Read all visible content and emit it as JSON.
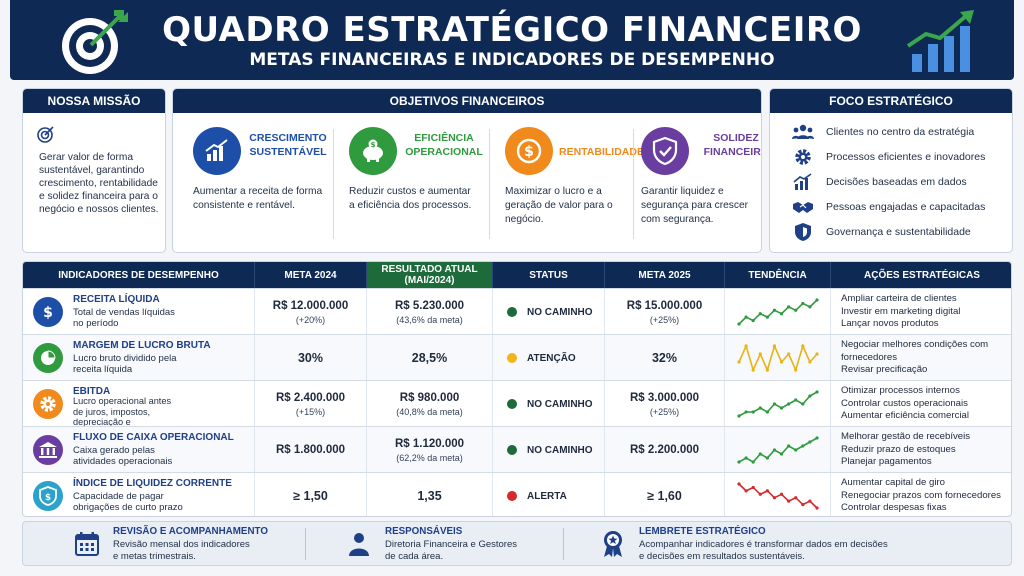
{
  "header": {
    "title": "QUADRO ESTRATÉGICO FINANCEIRO",
    "subtitle": "METAS FINANCEIRAS E INDICADORES DE DESEMPENHO"
  },
  "mission": {
    "title": "NOSSA MISSÃO",
    "text": "Gerar valor de forma sustentável, garantindo crescimento, rentabilidade e solidez financeira para o negócio e nossos clientes."
  },
  "objectives": {
    "title": "OBJETIVOS FINANCEIROS",
    "items": [
      {
        "name": "CRESCIMENTO SUSTENTÁVEL",
        "desc": "Aumentar a receita de forma consistente e rentável.",
        "color": "#1e4fa8",
        "icon": "growth-chart-icon"
      },
      {
        "name": "EFICIÊNCIA OPERACIONAL",
        "desc": "Reduzir custos e aumentar a eficiência dos processos.",
        "color": "#2f9a3e",
        "icon": "piggy-bank-icon"
      },
      {
        "name": "RENTABILIDADE",
        "desc": "Maximizar o lucro e a geração de valor para o negócio.",
        "color": "#f08a1c",
        "icon": "dollar-coin-icon"
      },
      {
        "name": "SOLIDEZ FINANCEIRA",
        "desc": "Garantir liquidez e segurança para crescer com segurança.",
        "color": "#6a3ea0",
        "icon": "shield-check-icon"
      }
    ]
  },
  "focus": {
    "title": "FOCO ESTRATÉGICO",
    "items": [
      {
        "label": "Clientes no centro da estratégia",
        "icon": "people-icon"
      },
      {
        "label": "Processos eficientes e inovadores",
        "icon": "gear-icon"
      },
      {
        "label": "Decisões baseadas em dados",
        "icon": "bar-chart-icon"
      },
      {
        "label": "Pessoas engajadas e capacitadas",
        "icon": "handshake-icon"
      },
      {
        "label": "Governança e sustentabilidade",
        "icon": "shield-icon"
      }
    ]
  },
  "table": {
    "headers": [
      "INDICADORES DE DESEMPENHO",
      "META 2024",
      "RESULTADO ATUAL (MAI/2024)",
      "STATUS",
      "META 2025",
      "TENDÊNCIA",
      "AÇÕES ESTRATÉGICAS"
    ],
    "rows": [
      {
        "name": "RECEITA LÍQUIDA",
        "desc": "Total de vendas líquidas no período",
        "icon": "dollar-icon",
        "icon_color": "#1e4fa8",
        "meta2024": "R$ 12.000.000",
        "meta2024_sub": "(+20%)",
        "result": "R$ 5.230.000",
        "result_sub": "(43,6% da meta)",
        "status": "NO CAMINHO",
        "status_color": "#1d6b3a",
        "meta2025": "R$ 15.000.000",
        "meta2025_sub": "(+25%)",
        "trend": [
          2,
          4,
          3,
          5,
          4,
          6,
          5,
          7,
          6,
          8,
          7,
          9
        ],
        "trend_color": "#2f9a3e",
        "actions": [
          "Ampliar carteira de clientes",
          "Investir em marketing digital",
          "Lançar novos produtos"
        ]
      },
      {
        "name": "MARGEM DE LUCRO BRUTA",
        "desc": "Lucro bruto dividido pela receita líquida",
        "icon": "pie-chart-icon",
        "icon_color": "#2f9a3e",
        "meta2024": "30%",
        "meta2024_sub": "",
        "result": "28,5%",
        "result_sub": "",
        "status": "ATENÇÃO",
        "status_color": "#f2b418",
        "meta2025": "32%",
        "meta2025_sub": "",
        "trend": [
          5,
          7,
          4,
          6,
          4,
          7,
          5,
          6,
          4,
          7,
          5,
          6
        ],
        "trend_color": "#e8b418",
        "actions": [
          "Negociar melhores condições com fornecedores",
          "Revisar precificação"
        ]
      },
      {
        "name": "EBITDA",
        "desc": "Lucro operacional antes de juros, impostos, depreciação e amortização",
        "icon": "gear-icon",
        "icon_color": "#f08a1c",
        "meta2024": "R$ 2.400.000",
        "meta2024_sub": "(+15%)",
        "result": "R$ 980.000",
        "result_sub": "(40,8% da meta)",
        "status": "NO CAMINHO",
        "status_color": "#1d6b3a",
        "meta2025": "R$ 3.000.000",
        "meta2025_sub": "(+25%)",
        "trend": [
          2,
          3,
          3,
          4,
          3,
          5,
          4,
          5,
          6,
          5,
          7,
          8
        ],
        "trend_color": "#2f9a3e",
        "actions": [
          "Otimizar processos internos",
          "Controlar custos operacionais",
          "Aumentar eficiência comercial"
        ]
      },
      {
        "name": "FLUXO DE CAIXA OPERACIONAL",
        "desc": "Caixa gerado pelas atividades operacionais",
        "icon": "bank-icon",
        "icon_color": "#6a3ea0",
        "meta2024": "R$ 1.800.000",
        "meta2024_sub": "",
        "result": "R$ 1.120.000",
        "result_sub": "(62,2% da meta)",
        "status": "NO CAMINHO",
        "status_color": "#1d6b3a",
        "meta2025": "R$ 2.200.000",
        "meta2025_sub": "",
        "trend": [
          2,
          3,
          2,
          4,
          3,
          5,
          4,
          6,
          5,
          6,
          7,
          8
        ],
        "trend_color": "#2f9a3e",
        "actions": [
          "Melhorar gestão de recebíveis",
          "Reduzir prazo de estoques",
          "Planejar pagamentos"
        ]
      },
      {
        "name": "ÍNDICE DE LIQUIDEZ CORRENTE",
        "desc": "Capacidade de pagar obrigações de curto prazo",
        "icon": "shield-dollar-icon",
        "icon_color": "#2aa2c9",
        "meta2024": "≥ 1,50",
        "meta2024_sub": "",
        "result": "1,35",
        "result_sub": "",
        "status": "ALERTA",
        "status_color": "#d42a2a",
        "meta2025": "≥ 1,60",
        "meta2025_sub": "",
        "trend": [
          8,
          6,
          7,
          5,
          6,
          4,
          5,
          3,
          4,
          2,
          3,
          1
        ],
        "trend_color": "#d42a2a",
        "actions": [
          "Aumentar capital de giro",
          "Renegociar prazos com fornecedores",
          "Controlar despesas fixas"
        ]
      }
    ]
  },
  "footer": [
    {
      "title": "REVISÃO E ACOMPANHAMENTO",
      "desc": [
        "Revisão mensal dos indicadores",
        "e metas trimestrais."
      ],
      "icon": "calendar-icon"
    },
    {
      "title": "RESPONSÁVEIS",
      "desc": [
        "Diretoria Financeira e Gestores",
        "de cada área."
      ],
      "icon": "person-icon"
    },
    {
      "title": "LEMBRETE ESTRATÉGICO",
      "desc": [
        "Acompanhar indicadores é transformar dados em decisões",
        "e decisões em resultados sustentáveis."
      ],
      "icon": "award-icon"
    }
  ]
}
